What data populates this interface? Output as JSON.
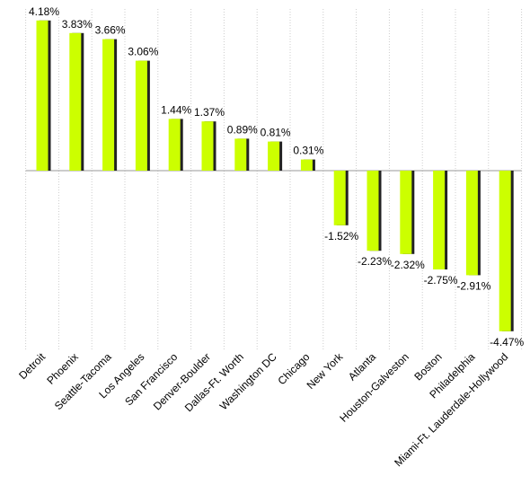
{
  "chart_data": {
    "type": "bar",
    "categories": [
      "Detroit",
      "Phoenix",
      "Seattle-Tacoma",
      "Los Angeles",
      "San Francisco",
      "Denver-Boulder",
      "Dallas-Ft. Worth",
      "Washington DC",
      "Chicago",
      "New York",
      "Atlanta",
      "Houston-Galveston",
      "Boston",
      "Philadelphia",
      "Miami-Ft. Lauderdale-Hollywood"
    ],
    "values": [
      4.18,
      3.83,
      3.66,
      3.06,
      1.44,
      1.37,
      0.89,
      0.81,
      0.31,
      -1.52,
      -2.23,
      -2.32,
      -2.75,
      -2.91,
      -4.47
    ],
    "value_labels": [
      "4.18%",
      "3.83%",
      "3.66%",
      "3.06%",
      "1.44%",
      "1.37%",
      "0.89%",
      "0.81%",
      "0.31%",
      "-1.52%",
      "-2.23%",
      "-2.32%",
      "-2.75%",
      "-2.91%",
      "-4.47%"
    ],
    "color": "#ccff00",
    "ylim": [
      -5,
      4.5
    ],
    "grid": true
  }
}
